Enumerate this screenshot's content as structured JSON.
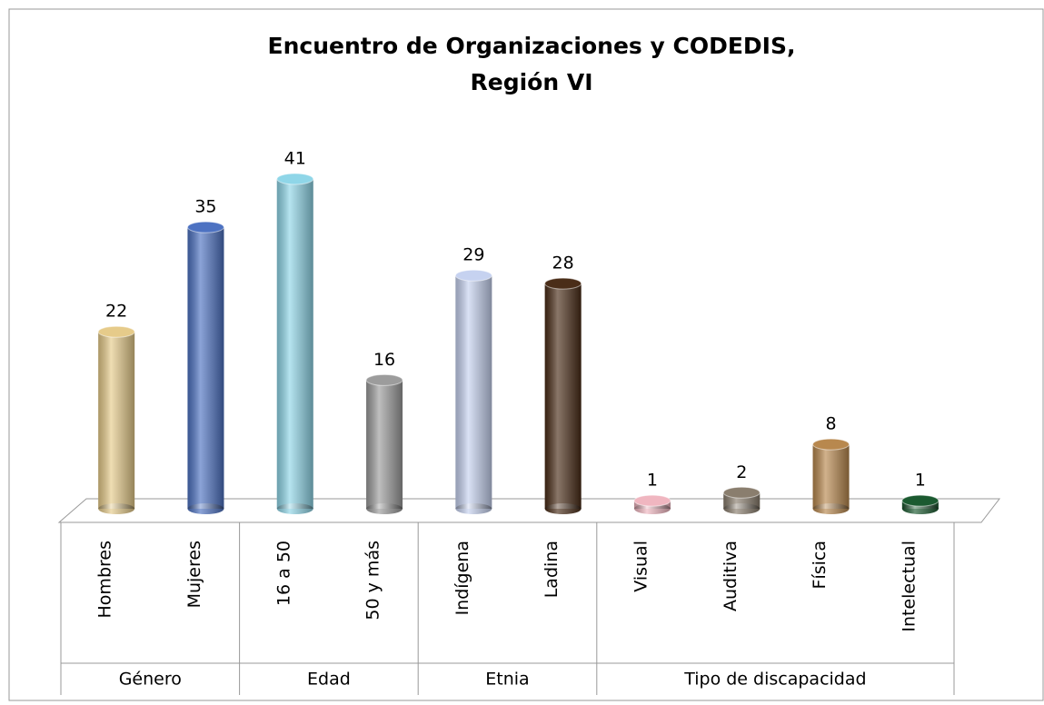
{
  "chart_data": {
    "type": "bar",
    "title": [
      "Encuentro de Organizaciones y CODEDIS,",
      "Región VI"
    ],
    "groups": [
      {
        "name": "Género",
        "categories": [
          "Hombres",
          "Mujeres"
        ],
        "values": [
          22,
          35
        ],
        "colors": [
          "#e6cb8a",
          "#4d72c2"
        ]
      },
      {
        "name": "Edad",
        "categories": [
          "16 a 50",
          "50 y más"
        ],
        "values": [
          41,
          16
        ],
        "colors": [
          "#8fd6e8",
          "#9c9c9c"
        ]
      },
      {
        "name": "Etnia",
        "categories": [
          "Indígena",
          "Ladina"
        ],
        "values": [
          29,
          28
        ],
        "colors": [
          "#c6d2f0",
          "#4a2d18"
        ]
      },
      {
        "name": "Tipo de discapacidad",
        "categories": [
          "Visual",
          "Auditiva",
          "Física",
          "Intelectual"
        ],
        "values": [
          1,
          2,
          8,
          1
        ],
        "colors": [
          "#f0b6c0",
          "#8a7e6e",
          "#b8884e",
          "#1b5a30"
        ]
      }
    ]
  }
}
